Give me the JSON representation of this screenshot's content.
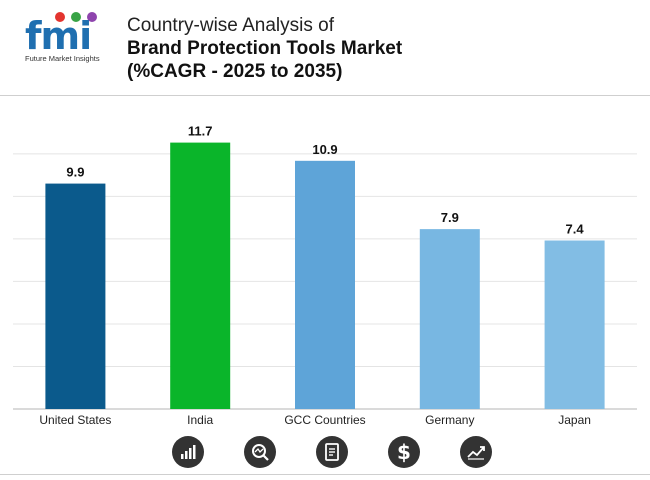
{
  "logo": {
    "brand": "fmi",
    "tagline": "Future Market Insights"
  },
  "header": {
    "line1": "Country-wise Analysis of",
    "line2": "Brand Protection Tools Market",
    "line3": "(%CAGR - 2025 to 2035)"
  },
  "colors": {
    "united_states": "#0b5a8c",
    "india": "#0ab52a",
    "gcc": "#5ea4d8",
    "germany": "#78b7e2",
    "japan": "#82bde4",
    "icon_bg": "#333333"
  },
  "chart_data": {
    "type": "bar",
    "title": "Country-wise Analysis of Brand Protection Tools Market (%CAGR - 2025 to 2035)",
    "xlabel": "",
    "ylabel": "",
    "categories": [
      "United States",
      "India",
      "GCC Countries",
      "Germany",
      "Japan"
    ],
    "values": [
      9.9,
      11.7,
      10.9,
      7.9,
      7.4
    ],
    "data_labels": [
      "9.9",
      "11.7",
      "10.9",
      "7.9",
      "7.4"
    ],
    "ylim": [
      0,
      13
    ],
    "grid": true,
    "legend": "none"
  },
  "icons": [
    {
      "name": "growth-chart-icon",
      "glyph": "bars"
    },
    {
      "name": "analysis-icon",
      "glyph": "magnifier"
    },
    {
      "name": "report-icon",
      "glyph": "document"
    },
    {
      "name": "dollar-icon",
      "glyph": "$"
    },
    {
      "name": "trend-icon",
      "glyph": "trend"
    }
  ]
}
